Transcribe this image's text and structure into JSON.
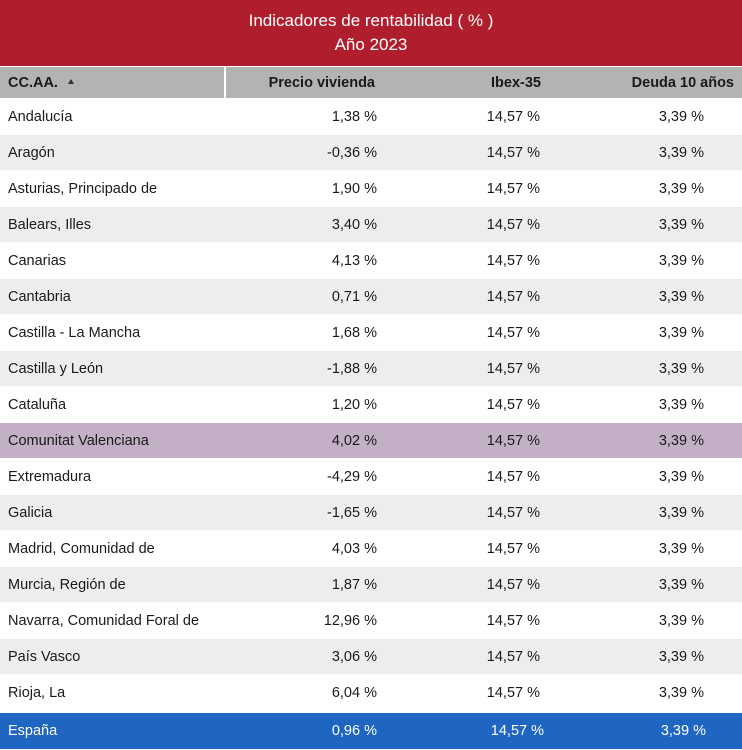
{
  "title": {
    "line1": "Indicadores de rentabilidad ( % )",
    "line2": "Año 2023"
  },
  "headers": [
    "CC.AA.",
    "Precio vivienda",
    "Ibex-35",
    "Deuda 10 años"
  ],
  "sort_icon": "sort-ascending-icon",
  "colors": {
    "title_bg": "#b01e2e",
    "header_bg": "#b3b3b3",
    "highlight_bg": "#c3b0c6",
    "total_bg": "#1f66c2",
    "stripe_bg": "#ededed"
  },
  "rows": [
    {
      "region": "Andalucía",
      "precio": "1,38 %",
      "ibex": "14,57 %",
      "deuda": "3,39 %"
    },
    {
      "region": "Aragón",
      "precio": "-0,36 %",
      "ibex": "14,57 %",
      "deuda": "3,39 %"
    },
    {
      "region": "Asturias, Principado de",
      "precio": "1,90 %",
      "ibex": "14,57 %",
      "deuda": "3,39 %"
    },
    {
      "region": "Balears, Illes",
      "precio": "3,40 %",
      "ibex": "14,57 %",
      "deuda": "3,39 %"
    },
    {
      "region": "Canarias",
      "precio": "4,13 %",
      "ibex": "14,57 %",
      "deuda": "3,39 %"
    },
    {
      "region": "Cantabria",
      "precio": "0,71 %",
      "ibex": "14,57 %",
      "deuda": "3,39 %"
    },
    {
      "region": "Castilla - La Mancha",
      "precio": "1,68 %",
      "ibex": "14,57 %",
      "deuda": "3,39 %"
    },
    {
      "region": "Castilla y León",
      "precio": "-1,88 %",
      "ibex": "14,57 %",
      "deuda": "3,39 %"
    },
    {
      "region": "Cataluña",
      "precio": "1,20 %",
      "ibex": "14,57 %",
      "deuda": "3,39 %"
    },
    {
      "region": "Comunitat Valenciana",
      "precio": "4,02 %",
      "ibex": "14,57 %",
      "deuda": "3,39 %"
    },
    {
      "region": "Extremadura",
      "precio": "-4,29 %",
      "ibex": "14,57 %",
      "deuda": "3,39 %"
    },
    {
      "region": "Galicia",
      "precio": "-1,65 %",
      "ibex": "14,57 %",
      "deuda": "3,39 %"
    },
    {
      "region": "Madrid, Comunidad de",
      "precio": "4,03 %",
      "ibex": "14,57 %",
      "deuda": "3,39 %"
    },
    {
      "region": "Murcia, Región de",
      "precio": "1,87 %",
      "ibex": "14,57 %",
      "deuda": "3,39 %"
    },
    {
      "region": "Navarra, Comunidad Foral de",
      "precio": "12,96 %",
      "ibex": "14,57 %",
      "deuda": "3,39 %"
    },
    {
      "region": "País Vasco",
      "precio": "3,06 %",
      "ibex": "14,57 %",
      "deuda": "3,39 %"
    },
    {
      "region": "Rioja, La",
      "precio": "6,04 %",
      "ibex": "14,57 %",
      "deuda": "3,39 %"
    }
  ],
  "total": {
    "region": "España",
    "precio": "0,96 %",
    "ibex": "14,57 %",
    "deuda": "3,39 %"
  }
}
